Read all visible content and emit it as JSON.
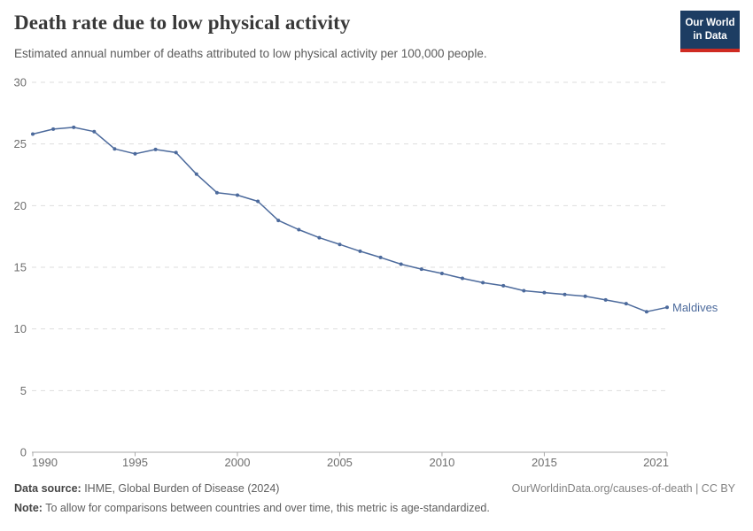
{
  "header": {
    "title": "Death rate due to low physical activity",
    "subtitle": "Estimated annual number of deaths attributed to low physical activity per 100,000 people.",
    "logo": {
      "line1": "Our World",
      "line2": "in Data",
      "bg_color": "#1d3d63",
      "accent_color": "#cf2b22"
    }
  },
  "chart_data": {
    "type": "line",
    "title": "Death rate due to low physical activity",
    "x": [
      1990,
      1991,
      1992,
      1993,
      1994,
      1995,
      1996,
      1997,
      1998,
      1999,
      2000,
      2001,
      2002,
      2003,
      2004,
      2005,
      2006,
      2007,
      2008,
      2009,
      2010,
      2011,
      2012,
      2013,
      2014,
      2015,
      2016,
      2017,
      2018,
      2019,
      2020,
      2021
    ],
    "series": [
      {
        "name": "Maldives",
        "color": "#4C6A9C",
        "values": [
          25.8,
          26.2,
          26.35,
          26.0,
          24.6,
          24.2,
          24.55,
          24.3,
          22.55,
          21.05,
          20.85,
          20.35,
          18.8,
          18.05,
          17.4,
          16.85,
          16.3,
          15.8,
          15.25,
          14.85,
          14.5,
          14.1,
          13.75,
          13.5,
          13.1,
          12.95,
          12.8,
          12.65,
          12.35,
          12.05,
          11.4,
          11.75
        ]
      }
    ],
    "xlabel": "",
    "ylabel": "",
    "ylim": [
      0,
      30
    ],
    "yticks": [
      0,
      5,
      10,
      15,
      20,
      25,
      30
    ],
    "xticks": [
      1990,
      1995,
      2000,
      2005,
      2010,
      2015,
      2021
    ],
    "grid": "horizontal-dashed",
    "legend_position": "end-of-line-label",
    "colors": {
      "line": "#4C6A9C",
      "gridline": "#dedede",
      "axis": "#a8a8a8",
      "tick_label": "#6e6e6e"
    }
  },
  "footer": {
    "datasource_label": "Data source:",
    "datasource_value": " IHME, Global Burden of Disease (2024)",
    "link": "OurWorldinData.org/causes-of-death | CC BY",
    "note_label": "Note:",
    "note_value": " To allow for comparisons between countries and over time, this metric is age-standardized."
  }
}
